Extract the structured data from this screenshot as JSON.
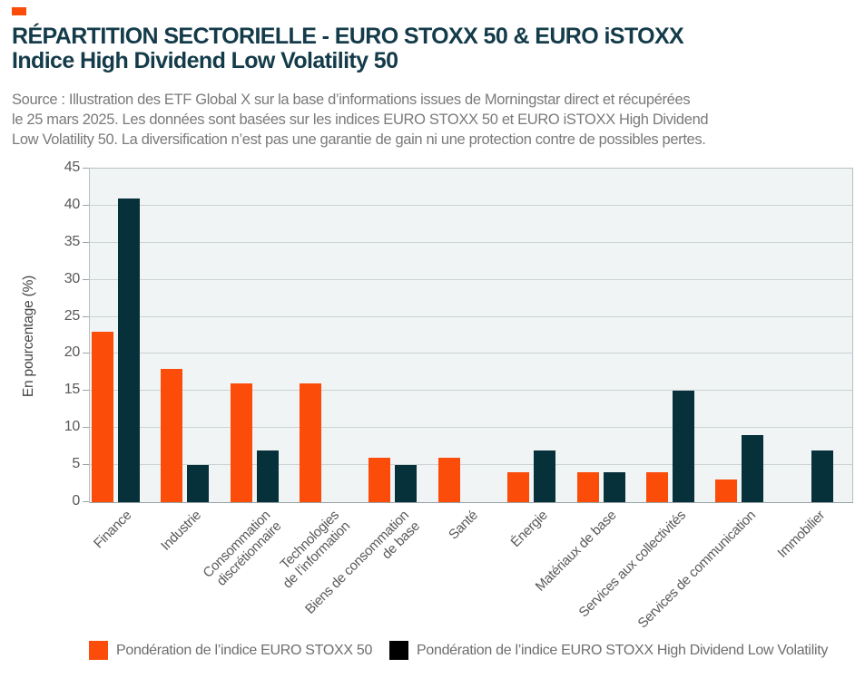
{
  "header": {
    "title_line1": "RÉPARTITION SECTORIELLE - EURO STOXX 50 & EURO iSTOXX",
    "title_line2": "Indice High Dividend Low Volatility 50",
    "source": "Source : Illustration des ETF Global X sur la base d’informations issues de Morningstar direct et récupérées\nle 25 mars 2025. Les données sont basées sur les indices EURO STOXX 50 et EURO iSTOXX High Dividend\nLow Volatility 50. La diversification n’est pas une garantie de gain ni une protection contre de possibles pertes."
  },
  "colors": {
    "accent_orange": "#FB4D09",
    "dark_teal": "#06303A",
    "legend_black": "#000000",
    "title_text": "#133B49",
    "plot_background": "#F0F4F5",
    "gridline": "#CBD3D5"
  },
  "chart_data": {
    "type": "bar",
    "categories": [
      "Finance",
      "Industrie",
      "Consommation\ndiscrétionnaire",
      "Technologies\nde l’information",
      "Biens de consommation\nde base",
      "Santé",
      "Énergie",
      "Matériaux de base",
      "Services aux collectivités",
      "Services de communication",
      "Immobilier"
    ],
    "series": [
      {
        "name": "Pondération de l’indice EURO STOXX 50",
        "color": "#FB4D09",
        "legend_color": "#FB4D09",
        "values": [
          23,
          18,
          16,
          16,
          6,
          6,
          4,
          4,
          4,
          3,
          0
        ]
      },
      {
        "name": "Pondération de l’indice EURO STOXX High Dividend Low Volatility",
        "color": "#06303A",
        "legend_color": "#000000",
        "values": [
          41,
          5,
          7,
          0,
          5,
          0,
          7,
          4,
          15,
          9,
          7
        ]
      }
    ],
    "title": "RÉPARTITION SECTORIELLE - EURO STOXX 50 & EURO iSTOXX Indice High Dividend Low Volatility 50",
    "xlabel": "",
    "ylabel": "En pourcentage (%)",
    "ylim": [
      0,
      45
    ],
    "ytick_step": 5,
    "grid": true,
    "legend_position": "bottom"
  }
}
